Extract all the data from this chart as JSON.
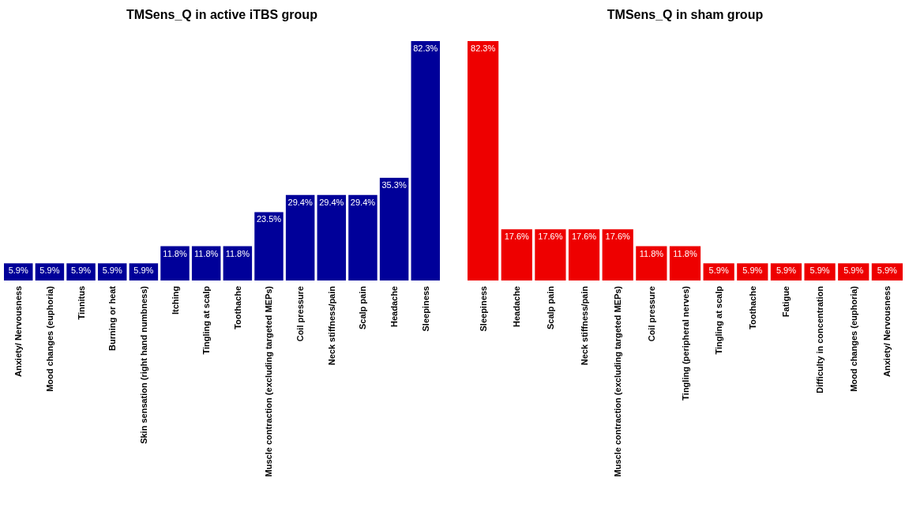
{
  "chart_data": [
    {
      "type": "bar",
      "title": "TMSens_Q in active iTBS group",
      "color": "#000099",
      "categories": [
        "Anxiety/ Nervousness",
        "Mood changes (euphoria)",
        "Tinnitus",
        "Burning or heat",
        "Skin sensation (right hand numbness)",
        "Itching",
        "Tingling at scalp",
        "Toothache",
        "Muscle contraction (excluding targeted MEPs)",
        "Coil pressure",
        "Neck stiffness/pain",
        "Scalp pain",
        "Headache",
        "Sleepiness"
      ],
      "values": [
        5.9,
        5.9,
        5.9,
        5.9,
        5.9,
        11.8,
        11.8,
        11.8,
        23.5,
        29.4,
        29.4,
        29.4,
        35.3,
        82.3
      ],
      "value_labels": [
        "5.9%",
        "5.9%",
        "5.9%",
        "5.9%",
        "5.9%",
        "11.8%",
        "11.8%",
        "11.8%",
        "23.5%",
        "29.4%",
        "29.4%",
        "29.4%",
        "35.3%",
        "82.3%"
      ]
    },
    {
      "type": "bar",
      "title": "TMSens_Q in sham group",
      "color": "#ee0000",
      "categories": [
        "Sleepiness",
        "Headache",
        "Scalp pain",
        "Neck stiffness/pain",
        "Muscle contraction (excluding targeted MEPs)",
        "Coil pressure",
        "Tingling (peripheral nerves)",
        "Tingling at scalp",
        "Toothache",
        "Fatigue",
        "Difficulty in concentration",
        "Mood changes (euphoria)",
        "Anxiety/ Nervousness"
      ],
      "values": [
        82.3,
        17.6,
        17.6,
        17.6,
        17.6,
        11.8,
        11.8,
        5.9,
        5.9,
        5.9,
        5.9,
        5.9,
        5.9
      ],
      "value_labels": [
        "82.3%",
        "17.6%",
        "17.6%",
        "17.6%",
        "17.6%",
        "11.8%",
        "11.8%",
        "5.9%",
        "5.9%",
        "5.9%",
        "5.9%",
        "5.9%",
        "5.9%"
      ]
    }
  ]
}
